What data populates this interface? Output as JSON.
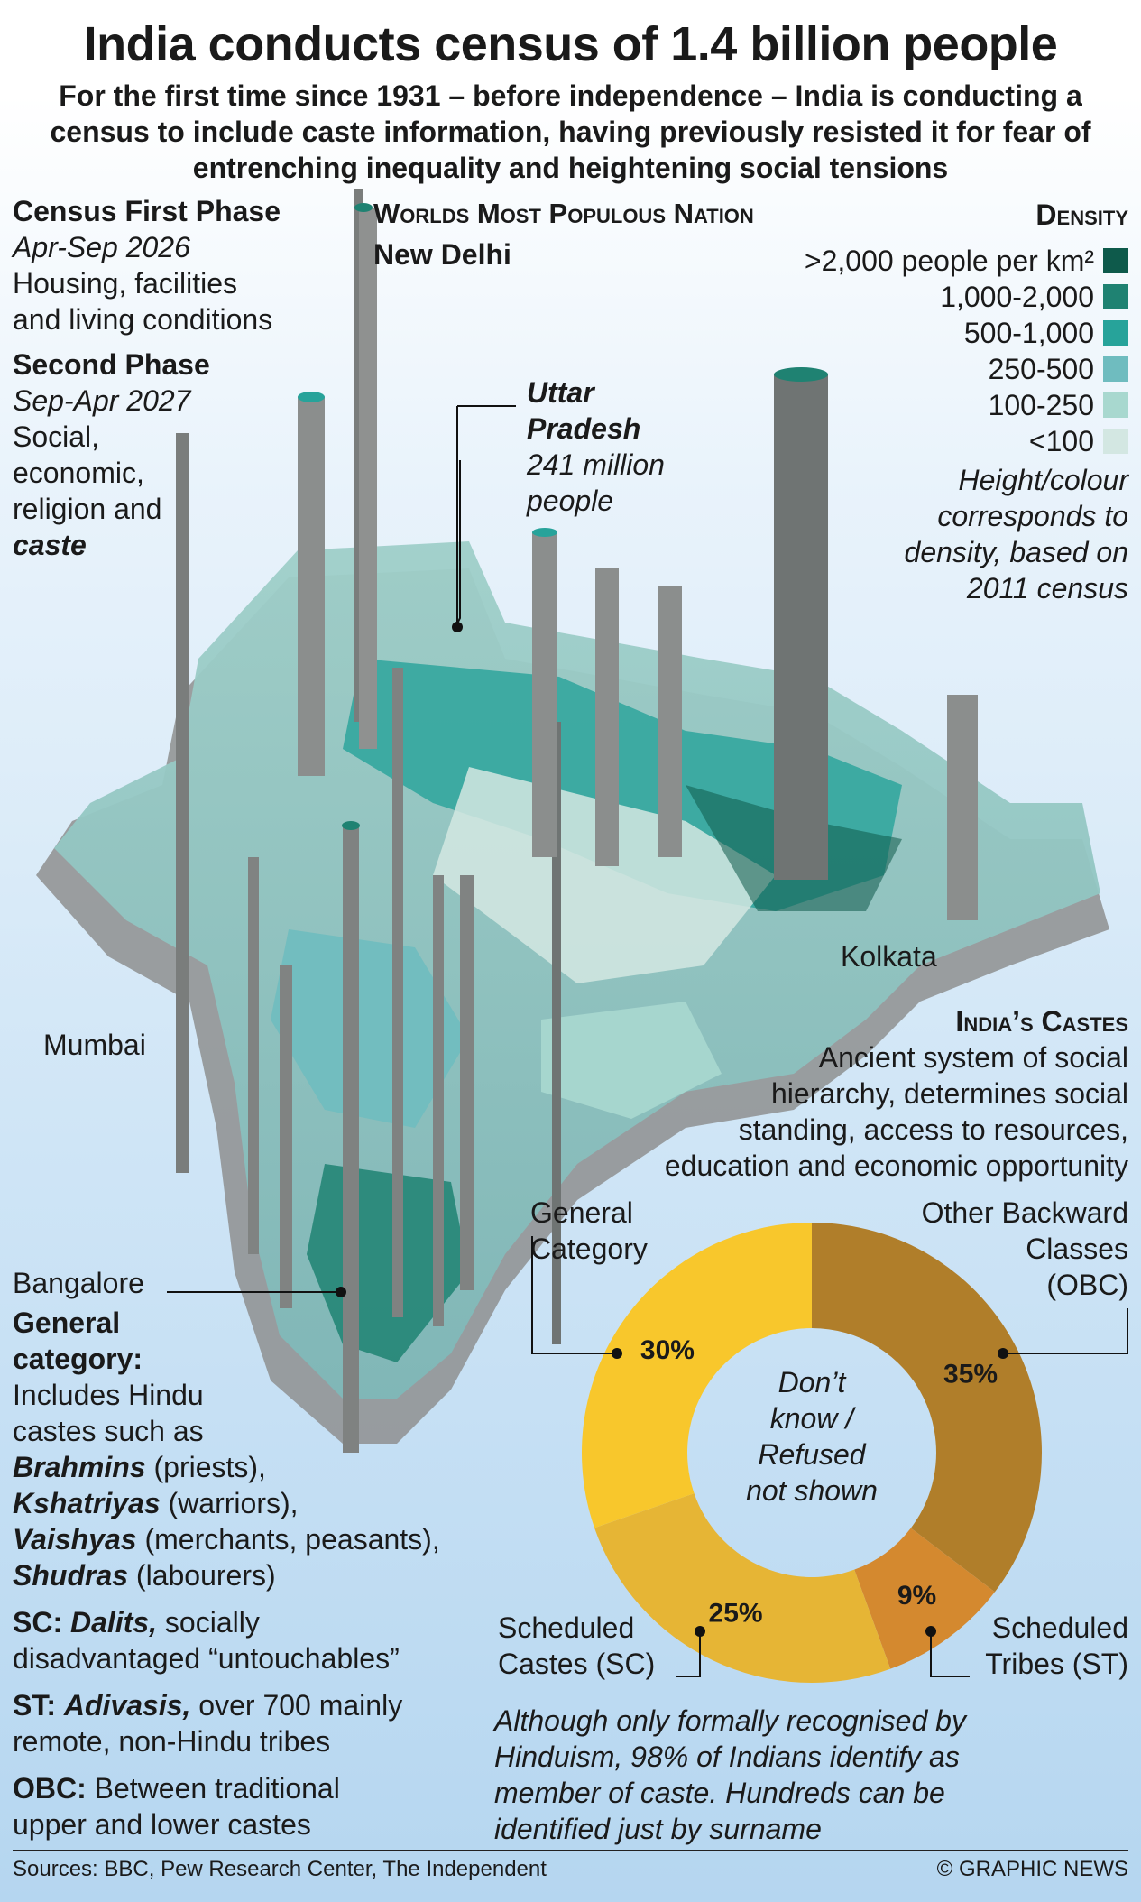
{
  "title": "India conducts census of 1.4 billion people",
  "subtitle": "For the first time since 1931 – before independence – India is conducting a census to include caste information, having previously resisted it for fear of entrenching inequality and heightening social tensions",
  "census": {
    "phase1_title": "Census First Phase",
    "phase1_dates": "Apr-Sep 2026",
    "phase1_desc_1": "Housing, facilities",
    "phase1_desc_2": "and living conditions",
    "phase2_title": "Second Phase",
    "phase2_dates": "Sep-Apr 2027",
    "phase2_desc_1": "Social,",
    "phase2_desc_2": "economic,",
    "phase2_desc_3": "religion and",
    "phase2_desc_4": "caste"
  },
  "map": {
    "heading": "Worlds Most Populous Nation",
    "new_delhi": "New Delhi",
    "uttar_pradesh_name_1": "Uttar",
    "uttar_pradesh_name_2": "Pradesh",
    "uttar_pradesh_pop_1": "241 million",
    "uttar_pradesh_pop_2": "people",
    "kolkata": "Kolkata",
    "mumbai": "Mumbai",
    "bangalore": "Bangalore"
  },
  "density_legend": {
    "title": "Density",
    "items": [
      {
        "label": ">2,000 people per km²",
        "color": "#0e5a4b"
      },
      {
        "label": "1,000-2,000",
        "color": "#1f8272"
      },
      {
        "label": "500-1,000",
        "color": "#27a39a"
      },
      {
        "label": "250-500",
        "color": "#6fbcbf"
      },
      {
        "label": "100-250",
        "color": "#a8d8cf"
      },
      {
        "label": "<100",
        "color": "#d3e7e2"
      }
    ],
    "note_1": "Height/colour",
    "note_2": "corresponds to",
    "note_3": "density, based on",
    "note_4": "2011 census"
  },
  "castes": {
    "heading": "India’s Castes",
    "desc_1": "Ancient system of social",
    "desc_2": "hierarchy, determines social",
    "desc_3": "standing, access to resources,",
    "desc_4": "education and economic opportunity",
    "center_1": "Don’t",
    "center_2": "know /",
    "center_3": "Refused",
    "center_4": "not shown",
    "label_general_1": "General",
    "label_general_2": "Category",
    "label_obc_1": "Other Backward",
    "label_obc_2": "Classes",
    "label_obc_3": "(OBC)",
    "label_sc_1": "Scheduled",
    "label_sc_2": "Castes (SC)",
    "label_st_1": "Scheduled",
    "label_st_2": "Tribes (ST)",
    "note_1": "Although only formally recognised by",
    "note_2": "Hinduism, 98% of Indians identify as",
    "note_3": "member of caste. Hundreds can be",
    "note_4": "identified just by surname"
  },
  "chart_data": {
    "type": "pie",
    "donut": true,
    "categories": [
      "Other Backward Classes (OBC)",
      "Scheduled Tribes (ST)",
      "Scheduled Castes (SC)",
      "General Category"
    ],
    "values": [
      35,
      9,
      25,
      30
    ],
    "value_labels": [
      "35%",
      "9%",
      "25%",
      "30%"
    ],
    "colors": [
      "#b07e2a",
      "#d4892f",
      "#e6b535",
      "#f8c72c"
    ]
  },
  "glossary": {
    "general_title_1": "General",
    "general_title_2": "category:",
    "general_1": "Includes Hindu",
    "general_2": "castes such as",
    "brahmins": "Brahmins",
    "brahmins_desc": " (priests),",
    "kshatriyas": "Kshatriyas",
    "kshatriyas_desc": " (warriors),",
    "vaishyas": "Vaishyas",
    "vaishyas_desc": " (merchants, peasants),",
    "shudras": "Shudras",
    "shudras_desc": " (labourers)",
    "sc_label": "SC: ",
    "sc_term": "Dalits,",
    "sc_desc_1": " socially",
    "sc_desc_2": "disadvantaged “untouchables”",
    "st_label": "ST: ",
    "st_term": "Adivasis,",
    "st_desc_1": " over 700 mainly",
    "st_desc_2": "remote, non-Hindu tribes",
    "obc_label": "OBC:",
    "obc_desc_1": " Between traditional",
    "obc_desc_2": "upper and lower castes"
  },
  "footer": {
    "sources": "Sources: BBC, Pew Research Center, The Independent",
    "credit": "© GRAPHIC NEWS"
  }
}
